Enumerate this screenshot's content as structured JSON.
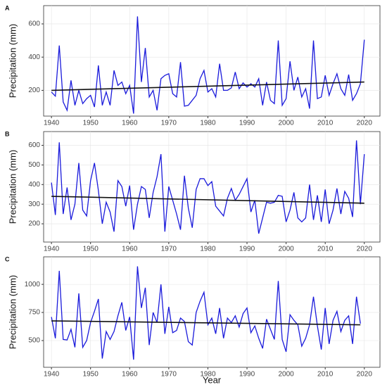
{
  "chart_data": [
    {
      "type": "line",
      "title": "A",
      "y_label": "Precipitation (mm)",
      "color": "#1a1adb",
      "trend_color": "#111111",
      "grid": true,
      "x": [
        1940,
        1941,
        1942,
        1943,
        1944,
        1945,
        1946,
        1947,
        1948,
        1949,
        1950,
        1951,
        1952,
        1953,
        1954,
        1955,
        1956,
        1957,
        1958,
        1959,
        1960,
        1961,
        1962,
        1963,
        1964,
        1965,
        1966,
        1967,
        1968,
        1969,
        1970,
        1971,
        1972,
        1973,
        1974,
        1975,
        1976,
        1977,
        1978,
        1979,
        1980,
        1981,
        1982,
        1983,
        1984,
        1985,
        1986,
        1987,
        1988,
        1989,
        1990,
        1991,
        1992,
        1993,
        1994,
        1995,
        1996,
        1997,
        1998,
        1999,
        2000,
        2001,
        2002,
        2003,
        2004,
        2005,
        2006,
        2007,
        2008,
        2009,
        2010,
        2011,
        2012,
        2013,
        2014,
        2015,
        2016,
        2017,
        2018,
        2019,
        2020
      ],
      "values": [
        190,
        165,
        470,
        130,
        80,
        260,
        110,
        200,
        120,
        150,
        170,
        100,
        350,
        110,
        190,
        110,
        320,
        230,
        250,
        180,
        230,
        60,
        645,
        250,
        455,
        160,
        200,
        80,
        270,
        290,
        300,
        180,
        160,
        370,
        105,
        110,
        140,
        170,
        270,
        320,
        190,
        210,
        160,
        360,
        200,
        200,
        215,
        310,
        210,
        245,
        220,
        240,
        220,
        270,
        110,
        250,
        140,
        120,
        500,
        110,
        150,
        375,
        200,
        280,
        160,
        210,
        90,
        500,
        150,
        160,
        290,
        170,
        240,
        300,
        210,
        170,
        295,
        140,
        180,
        240,
        505
      ],
      "trend": {
        "x": [
          1940,
          2020
        ],
        "values": [
          200,
          250
        ]
      },
      "xlim": [
        1938,
        2024
      ],
      "xticks": [
        1940,
        1950,
        1960,
        1970,
        1980,
        1990,
        2000,
        2010,
        2020
      ],
      "ylim": [
        45,
        710
      ],
      "yticks": [
        200,
        400,
        600
      ]
    },
    {
      "type": "line",
      "title": "B",
      "y_label": "Precipitation (mm)",
      "color": "#1a1adb",
      "trend_color": "#111111",
      "grid": true,
      "x": [
        1940,
        1941,
        1942,
        1943,
        1944,
        1945,
        1946,
        1947,
        1948,
        1949,
        1950,
        1951,
        1952,
        1953,
        1954,
        1955,
        1956,
        1957,
        1958,
        1959,
        1960,
        1961,
        1962,
        1963,
        1964,
        1965,
        1966,
        1967,
        1968,
        1969,
        1970,
        1971,
        1972,
        1973,
        1974,
        1975,
        1976,
        1977,
        1978,
        1979,
        1980,
        1981,
        1982,
        1983,
        1984,
        1985,
        1986,
        1987,
        1988,
        1989,
        1990,
        1991,
        1992,
        1993,
        1994,
        1995,
        1996,
        1997,
        1998,
        1999,
        2000,
        2001,
        2002,
        2003,
        2004,
        2005,
        2006,
        2007,
        2008,
        2009,
        2010,
        2011,
        2012,
        2013,
        2014,
        2015,
        2016,
        2017,
        2018,
        2019,
        2020
      ],
      "values": [
        410,
        245,
        615,
        250,
        385,
        220,
        300,
        510,
        270,
        240,
        420,
        510,
        370,
        200,
        310,
        260,
        160,
        420,
        390,
        290,
        395,
        170,
        300,
        390,
        375,
        230,
        360,
        440,
        555,
        160,
        390,
        320,
        250,
        170,
        445,
        280,
        180,
        375,
        430,
        430,
        395,
        415,
        290,
        265,
        240,
        330,
        380,
        320,
        350,
        390,
        430,
        260,
        320,
        150,
        230,
        310,
        305,
        310,
        345,
        340,
        210,
        270,
        360,
        230,
        210,
        230,
        400,
        220,
        345,
        210,
        375,
        200,
        270,
        380,
        250,
        365,
        330,
        235,
        625,
        300,
        555
      ],
      "trend": {
        "x": [
          1940,
          2020
        ],
        "values": [
          340,
          305
        ]
      },
      "xlim": [
        1938,
        2024
      ],
      "xticks": [
        1940,
        1950,
        1960,
        1970,
        1980,
        1990,
        2000,
        2010,
        2020
      ],
      "ylim": [
        107,
        670
      ],
      "yticks": [
        200,
        300,
        400,
        500,
        600
      ]
    },
    {
      "type": "line",
      "title": "C",
      "y_label": "Precipitation (mm)",
      "x_label": "Year",
      "color": "#1a1adb",
      "trend_color": "#111111",
      "grid": true,
      "x": [
        1940,
        1941,
        1942,
        1943,
        1944,
        1945,
        1946,
        1947,
        1948,
        1949,
        1950,
        1951,
        1952,
        1953,
        1954,
        1955,
        1956,
        1957,
        1958,
        1959,
        1960,
        1961,
        1962,
        1963,
        1964,
        1965,
        1966,
        1967,
        1968,
        1969,
        1970,
        1971,
        1972,
        1973,
        1974,
        1975,
        1976,
        1977,
        1978,
        1979,
        1980,
        1981,
        1982,
        1983,
        1984,
        1985,
        1986,
        1987,
        1988,
        1989,
        1990,
        1991,
        1992,
        1993,
        1994,
        1995,
        1996,
        1997,
        1998,
        1999,
        2000,
        2001,
        2002,
        2003,
        2004,
        2005,
        2006,
        2007,
        2008,
        2009,
        2010,
        2011,
        2012,
        2013,
        2014,
        2015,
        2016,
        2017,
        2018,
        2019
      ],
      "values": [
        710,
        520,
        1120,
        510,
        505,
        600,
        440,
        920,
        440,
        500,
        660,
        760,
        870,
        340,
        580,
        510,
        580,
        720,
        840,
        590,
        710,
        330,
        1160,
        790,
        970,
        460,
        750,
        660,
        1000,
        560,
        800,
        570,
        590,
        700,
        670,
        490,
        460,
        750,
        850,
        930,
        640,
        700,
        560,
        790,
        520,
        700,
        660,
        720,
        620,
        740,
        790,
        570,
        630,
        520,
        430,
        690,
        600,
        510,
        1030,
        510,
        400,
        730,
        680,
        640,
        450,
        520,
        640,
        890,
        630,
        420,
        790,
        470,
        680,
        760,
        580,
        680,
        720,
        470,
        890,
        650
      ],
      "trend": {
        "x": [
          1940,
          2019
        ],
        "values": [
          675,
          640
        ]
      },
      "xlim": [
        1938,
        2024
      ],
      "xticks": [
        1940,
        1950,
        1960,
        1970,
        1980,
        1990,
        2000,
        2010,
        2020
      ],
      "ylim": [
        262,
        1245
      ],
      "yticks": [
        500,
        750,
        1000
      ]
    }
  ]
}
